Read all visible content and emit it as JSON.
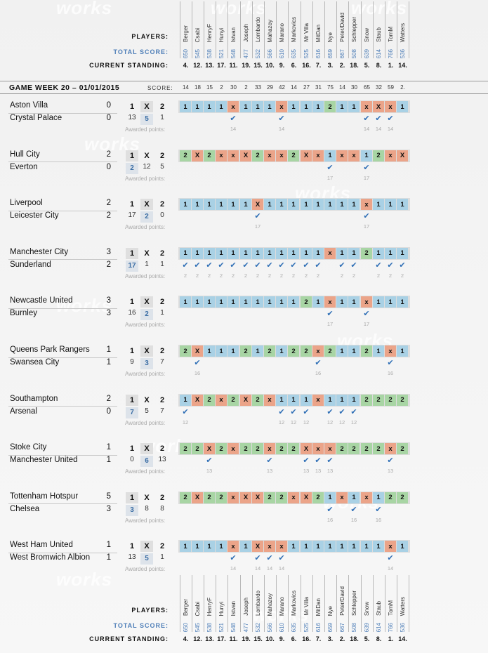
{
  "labels": {
    "players": "PLAYERS:",
    "total_score": "TOTAL SCORE:",
    "current_standing": "CURRENT STANDING:",
    "score": "SCORE:",
    "game_week": "GAME WEEK 20 – 01/01/2015",
    "awarded_points": "Awarded points:"
  },
  "watermark_text": "works",
  "colors": {
    "outcome_1": "#a9d1e5",
    "outcome_x": "#eba489",
    "outcome_2": "#a8d5a4",
    "check": "#2f6fb6",
    "total_score": "#4f7fb8"
  },
  "players": [
    {
      "name": "Berger",
      "total": "650",
      "standing": "4.",
      "score": "14"
    },
    {
      "name": "Csabi",
      "total": "545",
      "standing": "12.",
      "score": "18"
    },
    {
      "name": "HenryF",
      "total": "538",
      "standing": "13.",
      "score": "15"
    },
    {
      "name": "Hunyi",
      "total": "521",
      "standing": "17.",
      "score": "2"
    },
    {
      "name": "Istvan",
      "total": "548",
      "standing": "11.",
      "score": "30"
    },
    {
      "name": "Joseph",
      "total": "477",
      "standing": "19.",
      "score": "2"
    },
    {
      "name": "Lombardo",
      "total": "532",
      "standing": "15.",
      "score": "33"
    },
    {
      "name": "Mahazoy",
      "total": "566",
      "standing": "10.",
      "score": "29"
    },
    {
      "name": "Marano",
      "total": "610",
      "standing": "9.",
      "score": "42"
    },
    {
      "name": "Markovics",
      "total": "635",
      "standing": "6.",
      "score": "14"
    },
    {
      "name": "Mr Villa",
      "total": "525",
      "standing": "16.",
      "score": "27"
    },
    {
      "name": "MitDan",
      "total": "616",
      "standing": "7.",
      "score": "31"
    },
    {
      "name": "Nye",
      "total": "659",
      "standing": "3.",
      "score": "75"
    },
    {
      "name": "Peter/David",
      "total": "667",
      "standing": "2.",
      "score": "14"
    },
    {
      "name": "Schlepper",
      "total": "508",
      "standing": "18.",
      "score": "30"
    },
    {
      "name": "Snow",
      "total": "639",
      "standing": "5.",
      "score": "65"
    },
    {
      "name": "Staub",
      "total": "614",
      "standing": "8.",
      "score": "32"
    },
    {
      "name": "TomM",
      "total": "766",
      "standing": "1.",
      "score": "59"
    },
    {
      "name": "Watters",
      "total": "536",
      "standing": "14.",
      "score": "2."
    }
  ],
  "matches": [
    {
      "home": "Aston Villa",
      "away": "Crystal Palace",
      "hg": "0",
      "ag": "0",
      "result_index": 1,
      "counts": [
        "13",
        "5",
        "1"
      ],
      "tips": [
        "1",
        "1",
        "1",
        "1",
        "x",
        "1",
        "1",
        "1",
        "x",
        "1",
        "1",
        "1",
        "2",
        "1",
        "1",
        "x",
        "X",
        "x",
        "1"
      ],
      "checks": [
        4,
        8,
        15,
        16,
        17
      ],
      "points": [
        "14",
        "14",
        "14",
        "14",
        "14"
      ]
    },
    {
      "home": "Hull City",
      "away": "Everton",
      "hg": "2",
      "ag": "0",
      "result_index": 0,
      "counts": [
        "2",
        "12",
        "5"
      ],
      "tips": [
        "2",
        "X",
        "2",
        "x",
        "x",
        "X",
        "2",
        "x",
        "x",
        "2",
        "X",
        "x",
        "1",
        "x",
        "x",
        "1",
        "2",
        "x",
        "X"
      ],
      "checks": [
        12,
        15
      ],
      "points": [
        "17",
        "17"
      ]
    },
    {
      "home": "Liverpool",
      "away": "Leicester City",
      "hg": "2",
      "ag": "2",
      "result_index": 1,
      "counts": [
        "17",
        "2",
        "0"
      ],
      "tips": [
        "1",
        "1",
        "1",
        "1",
        "1",
        "1",
        "X",
        "1",
        "1",
        "1",
        "1",
        "1",
        "1",
        "1",
        "1",
        "x",
        "1",
        "1",
        "1"
      ],
      "checks": [
        6,
        15
      ],
      "points": [
        "17",
        "17"
      ]
    },
    {
      "home": "Manchester City",
      "away": "Sunderland",
      "hg": "3",
      "ag": "2",
      "result_index": 0,
      "counts": [
        "17",
        "1",
        "1"
      ],
      "tips": [
        "1",
        "1",
        "1",
        "1",
        "1",
        "1",
        "1",
        "1",
        "1",
        "1",
        "1",
        "1",
        "x",
        "1",
        "1",
        "2",
        "1",
        "1",
        "1"
      ],
      "checks": [
        0,
        1,
        2,
        3,
        4,
        5,
        6,
        7,
        8,
        9,
        10,
        11,
        13,
        14,
        16,
        17,
        18
      ],
      "points": [
        "2",
        "2",
        "2",
        "2",
        "2",
        "2",
        "2",
        "2",
        "2",
        "2",
        "2",
        "2",
        "2",
        "2",
        "2",
        "2",
        "2"
      ]
    },
    {
      "home": "Newcastle United",
      "away": "Burnley",
      "hg": "3",
      "ag": "3",
      "result_index": 1,
      "counts": [
        "16",
        "2",
        "1"
      ],
      "tips": [
        "1",
        "1",
        "1",
        "1",
        "1",
        "1",
        "1",
        "1",
        "1",
        "1",
        "2",
        "1",
        "x",
        "1",
        "1",
        "x",
        "1",
        "1",
        "1"
      ],
      "checks": [
        12,
        15
      ],
      "points": [
        "17",
        "17"
      ]
    },
    {
      "home": "Queens Park Rangers",
      "away": "Swansea City",
      "hg": "1",
      "ag": "1",
      "result_index": 1,
      "counts": [
        "9",
        "3",
        "7"
      ],
      "tips": [
        "2",
        "X",
        "1",
        "1",
        "1",
        "2",
        "1",
        "2",
        "1",
        "2",
        "2",
        "x",
        "2",
        "1",
        "1",
        "2",
        "1",
        "x",
        "1"
      ],
      "checks": [
        1,
        11,
        17
      ],
      "points": [
        "16",
        "16",
        "16"
      ]
    },
    {
      "home": "Southampton",
      "away": "Arsenal",
      "hg": "2",
      "ag": "0",
      "result_index": 0,
      "counts": [
        "7",
        "5",
        "7"
      ],
      "tips": [
        "1",
        "X",
        "2",
        "x",
        "2",
        "X",
        "2",
        "x",
        "1",
        "1",
        "1",
        "x",
        "1",
        "1",
        "1",
        "2",
        "2",
        "2",
        "2"
      ],
      "checks": [
        0,
        8,
        9,
        10,
        12,
        13,
        14
      ],
      "points": [
        "12",
        "12",
        "12",
        "12",
        "12",
        "12",
        "12"
      ]
    },
    {
      "home": "Stoke City",
      "away": "Manchester United",
      "hg": "1",
      "ag": "1",
      "result_index": 1,
      "counts": [
        "0",
        "6",
        "13"
      ],
      "tips": [
        "2",
        "2",
        "X",
        "2",
        "x",
        "2",
        "2",
        "x",
        "2",
        "2",
        "X",
        "x",
        "x",
        "2",
        "2",
        "2",
        "2",
        "x",
        "2"
      ],
      "checks": [
        2,
        7,
        10,
        11,
        12,
        17
      ],
      "points": [
        "13",
        "13",
        "13",
        "13",
        "13",
        "13"
      ]
    },
    {
      "home": "Tottenham Hotspur",
      "away": "Chelsea",
      "hg": "5",
      "ag": "3",
      "result_index": 0,
      "counts": [
        "3",
        "8",
        "8"
      ],
      "tips": [
        "2",
        "X",
        "2",
        "2",
        "x",
        "X",
        "X",
        "2",
        "2",
        "x",
        "X",
        "2",
        "1",
        "x",
        "1",
        "x",
        "1",
        "2",
        "2"
      ],
      "checks": [
        12,
        14,
        16
      ],
      "points": [
        "16",
        "16",
        "16"
      ]
    },
    {
      "home": "West Ham United",
      "away": "West Bromwich Albion",
      "hg": "1",
      "ag": "1",
      "result_index": 1,
      "counts": [
        "13",
        "5",
        "1"
      ],
      "tips": [
        "1",
        "1",
        "1",
        "1",
        "x",
        "1",
        "X",
        "x",
        "x",
        "1",
        "1",
        "1",
        "1",
        "1",
        "1",
        "1",
        "1",
        "x",
        "1"
      ],
      "checks": [
        4,
        6,
        7,
        8,
        17
      ],
      "points": [
        "14",
        "14",
        "14",
        "14",
        "14"
      ]
    }
  ]
}
